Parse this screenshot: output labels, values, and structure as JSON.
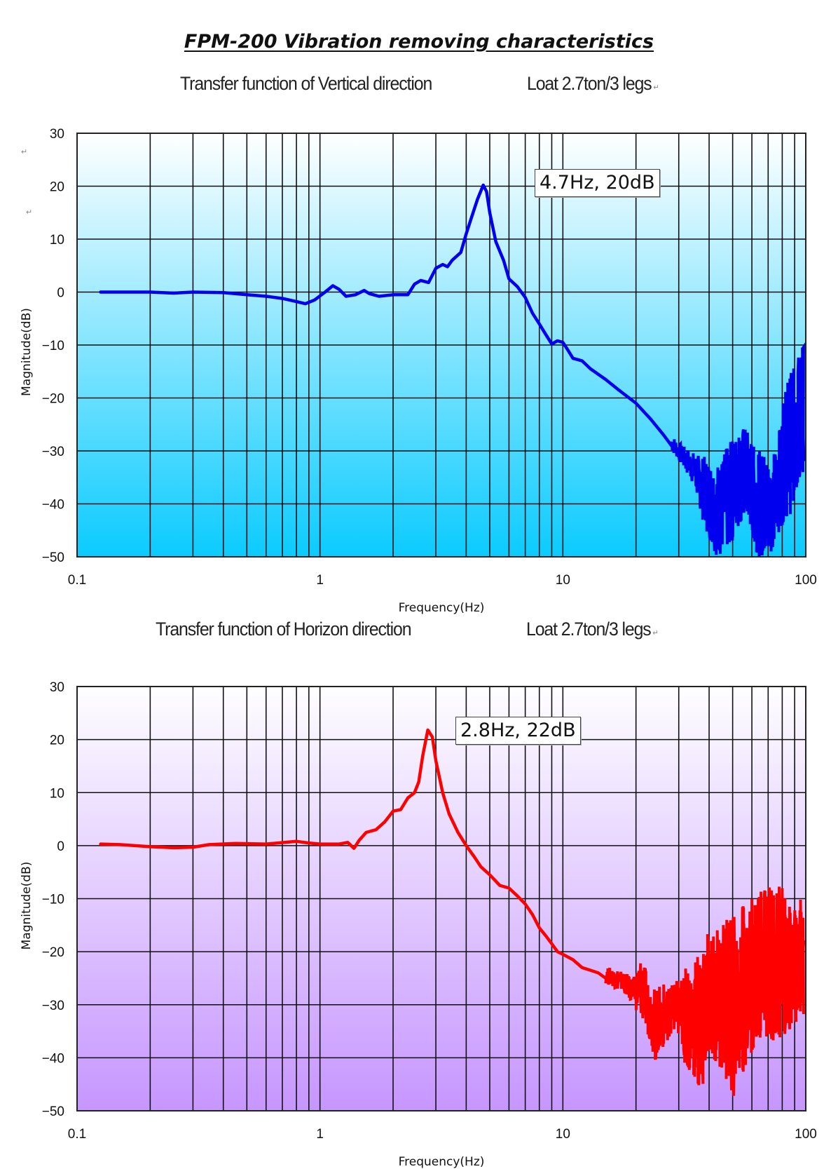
{
  "page_title": "FPM-200 Vibration removing characteristics",
  "para_mark": "↵",
  "colors": {
    "vertical_line": "#0000ee",
    "horizontal_line": "#ff0000",
    "vertical_bg_top": "#ffffff",
    "vertical_bg_bottom": "#0bcbff",
    "horizontal_bg_top": "#fefeff",
    "horizontal_bg_bottom": "#c696ff",
    "grid": "#111111"
  },
  "chart_data": [
    {
      "type": "line",
      "title": "Transfer function of Vertical direction",
      "load_note": "Loat 2.7ton/3 legs",
      "xlabel": "Frequency(Hz)",
      "ylabel": "Magnitude(dB)",
      "xscale": "log",
      "xlim": [
        0.1,
        100
      ],
      "ylim": [
        -50,
        30
      ],
      "x_ticks": [
        "0.1",
        "1",
        "10",
        "100"
      ],
      "y_ticks": [
        "30",
        "20",
        "10",
        "0",
        "−10",
        "−20",
        "−30",
        "−40",
        "−50"
      ],
      "grid": true,
      "annotation": "4.7Hz, 20dB",
      "series": [
        {
          "name": "Vertical",
          "points": [
            [
              0.125,
              0
            ],
            [
              0.15,
              0
            ],
            [
              0.2,
              0
            ],
            [
              0.25,
              -0.2
            ],
            [
              0.3,
              0
            ],
            [
              0.4,
              -0.1
            ],
            [
              0.5,
              -0.5
            ],
            [
              0.6,
              -0.8
            ],
            [
              0.7,
              -1.2
            ],
            [
              0.8,
              -1.8
            ],
            [
              0.87,
              -2.2
            ],
            [
              0.95,
              -1.5
            ],
            [
              1.05,
              0
            ],
            [
              1.13,
              1.2
            ],
            [
              1.2,
              0.5
            ],
            [
              1.28,
              -0.8
            ],
            [
              1.4,
              -0.5
            ],
            [
              1.52,
              0.3
            ],
            [
              1.6,
              -0.3
            ],
            [
              1.75,
              -0.8
            ],
            [
              2.0,
              -0.5
            ],
            [
              2.3,
              -0.5
            ],
            [
              2.45,
              1.5
            ],
            [
              2.6,
              2.2
            ],
            [
              2.8,
              1.8
            ],
            [
              3.0,
              4.5
            ],
            [
              3.2,
              5.2
            ],
            [
              3.35,
              4.8
            ],
            [
              3.5,
              6.0
            ],
            [
              3.8,
              7.5
            ],
            [
              4.0,
              11
            ],
            [
              4.2,
              14
            ],
            [
              4.45,
              17.5
            ],
            [
              4.7,
              20.2
            ],
            [
              4.85,
              19
            ],
            [
              5.0,
              15
            ],
            [
              5.3,
              9.5
            ],
            [
              5.7,
              6
            ],
            [
              6.0,
              2.5
            ],
            [
              6.5,
              1
            ],
            [
              7.0,
              -1
            ],
            [
              7.5,
              -4
            ],
            [
              8.0,
              -6
            ],
            [
              8.5,
              -8
            ],
            [
              9.0,
              -9.8
            ],
            [
              9.5,
              -9.2
            ],
            [
              10,
              -9.5
            ],
            [
              10.5,
              -11
            ],
            [
              11,
              -12.5
            ],
            [
              12,
              -13
            ],
            [
              13,
              -14.5
            ],
            [
              15,
              -16.5
            ],
            [
              17,
              -18.5
            ],
            [
              20,
              -21
            ],
            [
              23,
              -24
            ],
            [
              26,
              -27
            ],
            [
              28,
              -29
            ]
          ],
          "noisy_envelope": [
            [
              28,
              -30,
              -27
            ],
            [
              31,
              -33,
              -29
            ],
            [
              34,
              -36,
              -30
            ],
            [
              37,
              -42,
              -31
            ],
            [
              40,
              -47,
              -31
            ],
            [
              43,
              -50,
              -32
            ],
            [
              46,
              -50,
              -30
            ],
            [
              49,
              -48,
              -28
            ],
            [
              52,
              -45,
              -26
            ],
            [
              55,
              -43,
              -25
            ],
            [
              58,
              -44,
              -26
            ],
            [
              61,
              -48,
              -29
            ],
            [
              64,
              -50,
              -30
            ],
            [
              67,
              -50,
              -30
            ],
            [
              70,
              -50,
              -31
            ],
            [
              74,
              -48,
              -30
            ],
            [
              78,
              -45,
              -25
            ],
            [
              82,
              -43,
              -18
            ],
            [
              86,
              -42,
              -15
            ],
            [
              90,
              -40,
              -14
            ],
            [
              94,
              -37,
              -10
            ],
            [
              98,
              -33,
              -10
            ]
          ]
        }
      ]
    },
    {
      "type": "line",
      "title": "Transfer function of Horizon direction",
      "load_note": "Loat 2.7ton/3 legs",
      "xlabel": "Frequency(Hz)",
      "ylabel": "Magnitude(dB)",
      "xscale": "log",
      "xlim": [
        0.1,
        100
      ],
      "ylim": [
        -50,
        30
      ],
      "x_ticks": [
        "0.1",
        "1",
        "10",
        "100"
      ],
      "y_ticks": [
        "30",
        "20",
        "10",
        "0",
        "−10",
        "−20",
        "−30",
        "−40",
        "−50"
      ],
      "grid": true,
      "annotation": "2.8Hz, 22dB",
      "series": [
        {
          "name": "Horizontal",
          "points": [
            [
              0.125,
              0.3
            ],
            [
              0.15,
              0.2
            ],
            [
              0.2,
              -0.2
            ],
            [
              0.25,
              -0.4
            ],
            [
              0.3,
              -0.3
            ],
            [
              0.35,
              0.2
            ],
            [
              0.45,
              0.4
            ],
            [
              0.6,
              0.3
            ],
            [
              0.8,
              0.8
            ],
            [
              0.9,
              0.5
            ],
            [
              1.0,
              0.3
            ],
            [
              1.2,
              0.3
            ],
            [
              1.3,
              0.6
            ],
            [
              1.38,
              -0.5
            ],
            [
              1.45,
              1.0
            ],
            [
              1.55,
              2.5
            ],
            [
              1.7,
              3
            ],
            [
              1.85,
              4.5
            ],
            [
              2.0,
              6.5
            ],
            [
              2.15,
              6.8
            ],
            [
              2.3,
              9
            ],
            [
              2.45,
              10
            ],
            [
              2.55,
              12
            ],
            [
              2.65,
              17
            ],
            [
              2.78,
              21.8
            ],
            [
              2.9,
              20.5
            ],
            [
              3.0,
              16
            ],
            [
              3.2,
              10
            ],
            [
              3.4,
              6
            ],
            [
              3.7,
              2.5
            ],
            [
              4.0,
              0
            ],
            [
              4.3,
              -2
            ],
            [
              4.6,
              -4
            ],
            [
              5.0,
              -5.5
            ],
            [
              5.5,
              -7.5
            ],
            [
              6.0,
              -8
            ],
            [
              6.5,
              -9.5
            ],
            [
              7.0,
              -11
            ],
            [
              7.5,
              -13
            ],
            [
              8.0,
              -15.5
            ],
            [
              8.5,
              -17
            ],
            [
              9.0,
              -18.5
            ],
            [
              9.5,
              -20
            ],
            [
              10,
              -20.5
            ],
            [
              11,
              -21.5
            ],
            [
              12,
              -23
            ],
            [
              13,
              -23.5
            ],
            [
              14,
              -24
            ],
            [
              15,
              -25
            ]
          ],
          "noisy_envelope": [
            [
              15,
              -26,
              -23
            ],
            [
              16.5,
              -27,
              -23
            ],
            [
              18,
              -28,
              -24
            ],
            [
              19.5,
              -30,
              -25
            ],
            [
              21,
              -33,
              -20
            ],
            [
              22.5,
              -36,
              -26
            ],
            [
              24,
              -41,
              -27
            ],
            [
              26,
              -38,
              -26
            ],
            [
              28,
              -35,
              -26
            ],
            [
              30,
              -37,
              -25
            ],
            [
              32,
              -42,
              -23
            ],
            [
              34,
              -44,
              -21
            ],
            [
              36,
              -46,
              -20
            ],
            [
              38,
              -45,
              -18
            ],
            [
              40,
              -43,
              -16
            ],
            [
              43,
              -41,
              -15
            ],
            [
              46,
              -44,
              -14
            ],
            [
              49,
              -48,
              -13
            ],
            [
              52,
              -47,
              -12
            ],
            [
              55,
              -43,
              -11
            ],
            [
              58,
              -40,
              -10
            ],
            [
              62,
              -38,
              -9
            ],
            [
              66,
              -36,
              -8
            ],
            [
              70,
              -36,
              -7
            ],
            [
              74,
              -37,
              -8
            ],
            [
              78,
              -38,
              -7
            ],
            [
              82,
              -37,
              -9
            ],
            [
              86,
              -35,
              -10
            ],
            [
              90,
              -34,
              -11
            ],
            [
              94,
              -33,
              -10
            ],
            [
              98,
              -32,
              -9
            ]
          ]
        }
      ]
    }
  ]
}
